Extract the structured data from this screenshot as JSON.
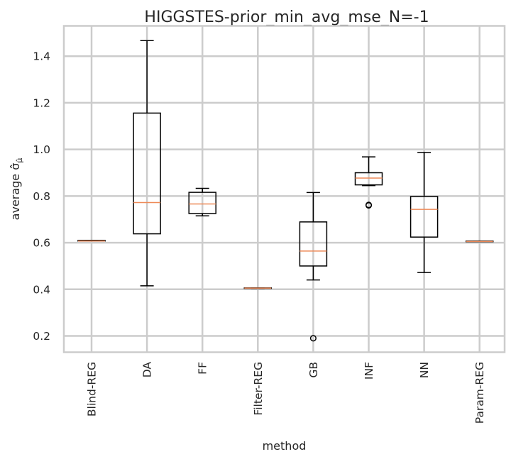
{
  "chart_data": {
    "type": "box",
    "title": "HIGGSTES-prior_min_avg_mse_N=-1",
    "xlabel": "method",
    "ylabel": "average σ̂",
    "ylabel_subscript": "μ̂",
    "ylim": [
      0.13,
      1.53
    ],
    "yticks": [
      "0.2",
      "0.4",
      "0.6",
      "0.8",
      "1.0",
      "1.2",
      "1.4"
    ],
    "grid": true,
    "categories": [
      "Blind-REG",
      "DA",
      "FF",
      "Filter-REG",
      "GB",
      "INF",
      "NN",
      "Param-REG"
    ],
    "boxes": [
      {
        "whisker_low": 0.607,
        "q1": 0.607,
        "median": 0.607,
        "q3": 0.61,
        "whisker_high": 0.61,
        "outliers": []
      },
      {
        "whisker_low": 0.415,
        "q1": 0.638,
        "median": 0.772,
        "q3": 1.156,
        "whisker_high": 1.467,
        "outliers": []
      },
      {
        "whisker_low": 0.715,
        "q1": 0.725,
        "median": 0.766,
        "q3": 0.816,
        "whisker_high": 0.833,
        "outliers": []
      },
      {
        "whisker_low": 0.404,
        "q1": 0.404,
        "median": 0.405,
        "q3": 0.406,
        "whisker_high": 0.406,
        "outliers": []
      },
      {
        "whisker_low": 0.44,
        "q1": 0.5,
        "median": 0.564,
        "q3": 0.689,
        "whisker_high": 0.815,
        "outliers": [
          0.19
        ]
      },
      {
        "whisker_low": 0.845,
        "q1": 0.848,
        "median": 0.877,
        "q3": 0.9,
        "whisker_high": 0.968,
        "outliers": [
          0.76,
          0.762
        ]
      },
      {
        "whisker_low": 0.472,
        "q1": 0.624,
        "median": 0.743,
        "q3": 0.798,
        "whisker_high": 0.987,
        "outliers": []
      },
      {
        "whisker_low": 0.604,
        "q1": 0.604,
        "median": 0.605,
        "q3": 0.607,
        "whisker_high": 0.607,
        "outliers": []
      }
    ],
    "colors": {
      "box": "#000000",
      "median": "#ee8a58",
      "grid": "#cccccc",
      "frame": "#cccccc",
      "text": "#262626"
    }
  }
}
